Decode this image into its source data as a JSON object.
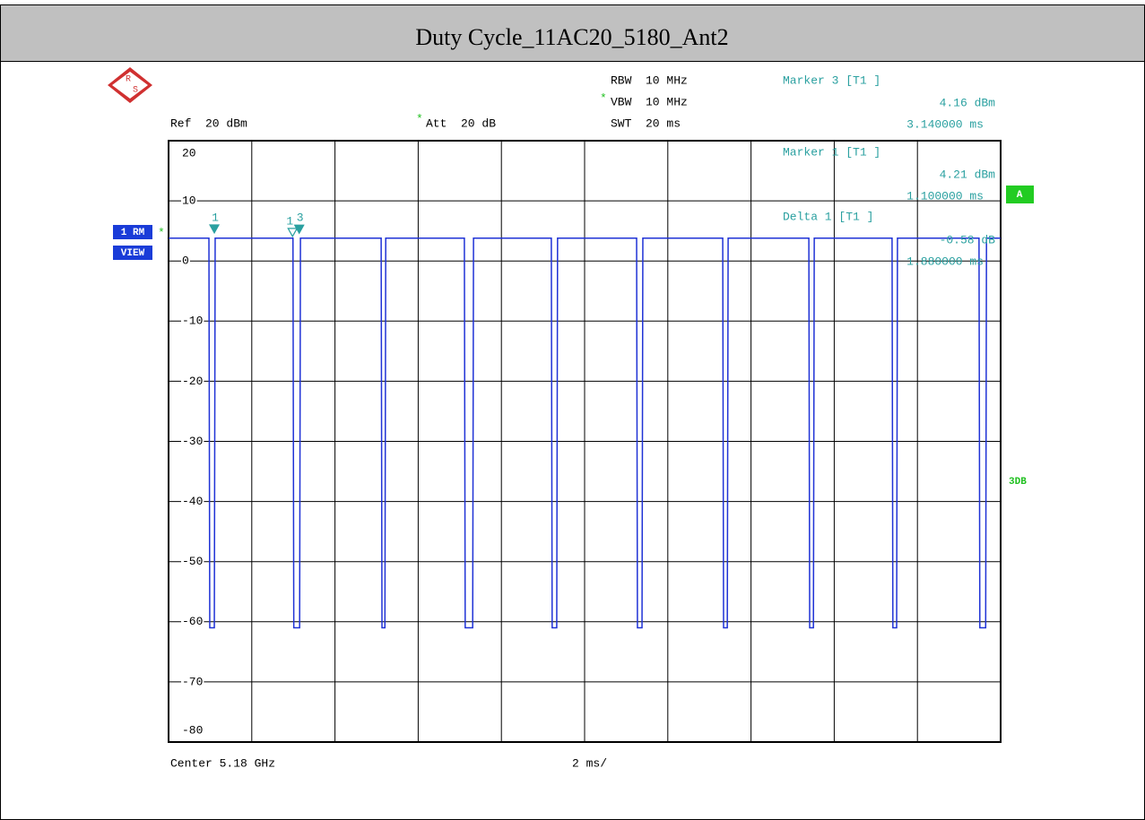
{
  "chart_data": {
    "type": "line",
    "title": "Duty Cycle_11AC20_5180_Ant2",
    "logo": [
      "R",
      "S"
    ],
    "settings_text": {
      "rbw": "RBW  10 MHz",
      "vbw": "VBW  10 MHz",
      "swt": "SWT  20 ms",
      "ref": "Ref  20 dBm",
      "att": "Att  20 dB",
      "changed": "*"
    },
    "readouts": [
      {
        "name": "Marker 3 [T1 ]",
        "level": "4.16 dBm",
        "time": "3.140000 ms"
      },
      {
        "name": "Marker 1 [T1 ]",
        "level": "4.21 dBm",
        "time": "1.100000 ms"
      },
      {
        "name": "Delta 1 [T1 ]",
        "level": "-0.58 dB",
        "time": "1.880000 ms"
      }
    ],
    "trace_labels": [
      "1 RM",
      "VIEW"
    ],
    "trace_flag": "*",
    "screen_label": "A",
    "limit_label": "3DB",
    "footer": {
      "center": "Center 5.18 GHz",
      "span": "2 ms/"
    },
    "xlim": [
      0,
      20
    ],
    "xticks": [
      0,
      2,
      4,
      6,
      8,
      10,
      12,
      14,
      16,
      18,
      20
    ],
    "ylim": [
      -80,
      20
    ],
    "yticks": [
      20,
      10,
      0,
      -10,
      -20,
      -30,
      -40,
      -50,
      -60,
      -70,
      -80
    ],
    "grid": true,
    "series": [
      {
        "name": "1 RM",
        "color": "#1f32d6",
        "x": [
          0,
          0.97,
          0.99,
          1.1,
          1.12,
          2.99,
          3.01,
          3.15,
          3.17,
          5.11,
          5.13,
          5.2,
          5.22,
          7.11,
          7.13,
          7.31,
          7.33,
          9.2,
          9.22,
          9.33,
          9.35,
          11.25,
          11.27,
          11.38,
          11.4,
          13.32,
          13.34,
          13.43,
          13.45,
          15.39,
          15.41,
          15.5,
          15.52,
          17.39,
          17.41,
          17.5,
          17.52,
          19.48,
          19.5,
          19.64,
          19.66,
          20
        ],
        "values": [
          3.8,
          3.8,
          -61,
          -61,
          3.8,
          3.8,
          -61,
          -61,
          3.8,
          3.8,
          -61,
          -61,
          3.8,
          3.8,
          -61,
          -61,
          3.8,
          3.8,
          -61,
          -61,
          3.8,
          3.8,
          -61,
          -61,
          3.8,
          3.8,
          -61,
          -61,
          3.8,
          3.8,
          -61,
          -61,
          3.8,
          3.8,
          -61,
          -61,
          3.8,
          3.8,
          -61,
          -61,
          3.8,
          3.8
        ]
      }
    ],
    "markers": [
      {
        "label": "1",
        "x": 1.1,
        "y": 4.21,
        "delta": false
      },
      {
        "label": "1",
        "x": 2.98,
        "y": 3.63,
        "delta": true
      },
      {
        "label": "3",
        "x": 3.14,
        "y": 4.16,
        "delta": false
      }
    ],
    "marker_color": "#2aa0a0"
  }
}
